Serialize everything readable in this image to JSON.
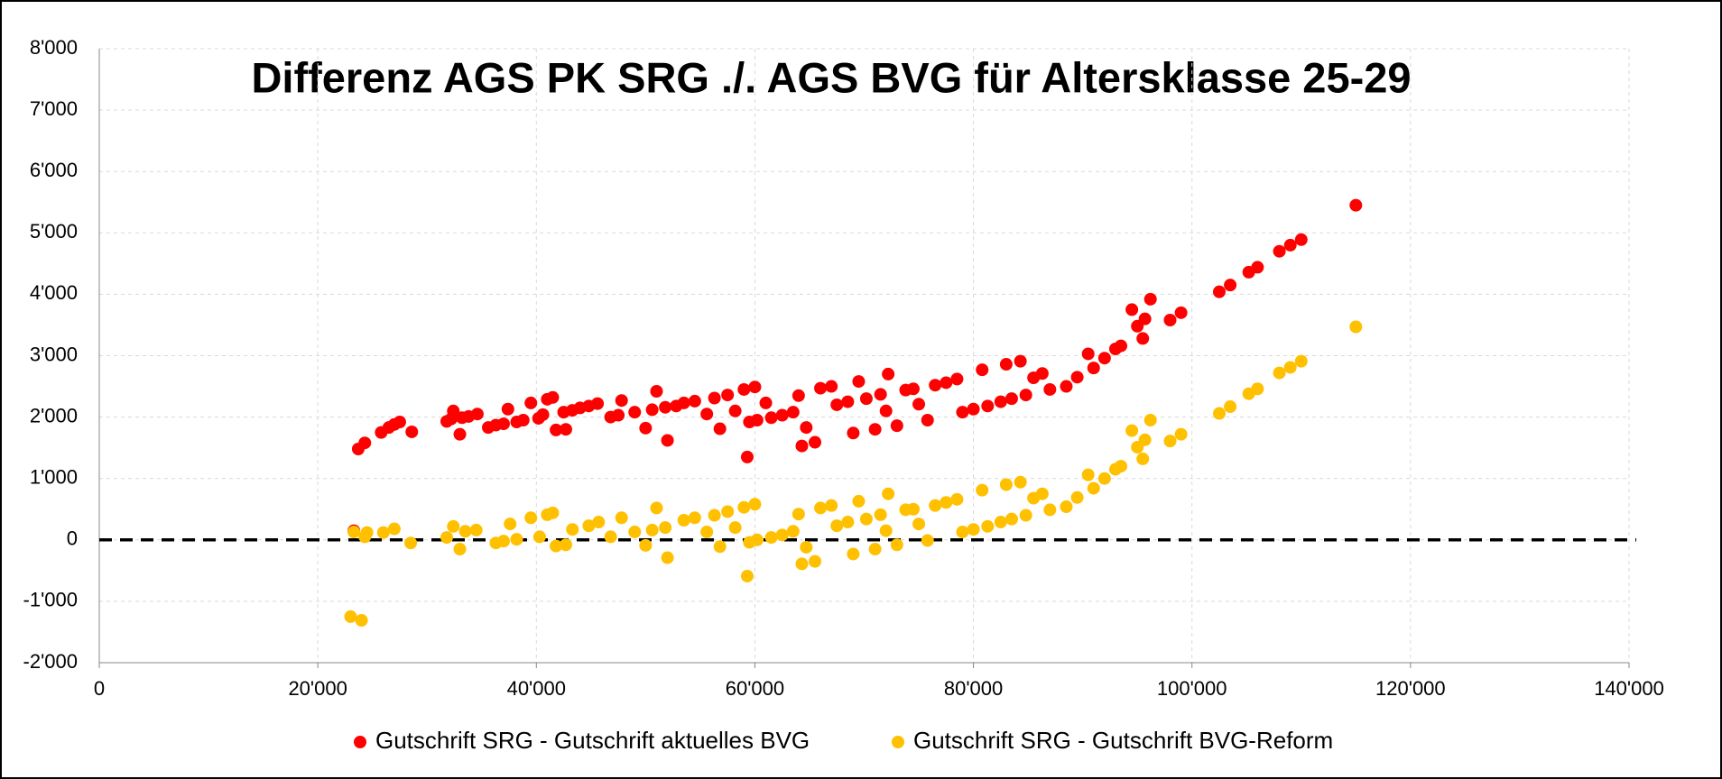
{
  "chart_data": {
    "type": "scatter",
    "title": "Differenz AGS PK SRG ./. AGS BVG für Altersklasse 25-29",
    "xlim": [
      0,
      140000
    ],
    "xticks": [
      0,
      {
        "value": 20000,
        "label": "20'000"
      },
      {
        "value": 40000,
        "label": "40'000"
      },
      {
        "value": 60000,
        "label": "60'000"
      },
      {
        "value": 80000,
        "label": "80'000"
      },
      {
        "value": 100000,
        "label": "100'000"
      },
      {
        "value": 120000,
        "label": "120'000"
      },
      {
        "value": 140000,
        "label": "140'000"
      }
    ],
    "ylim": [
      -2000,
      8000
    ],
    "yticks": [
      {
        "value": -2000,
        "label": "-2'000"
      },
      {
        "value": -1000,
        "label": "-1'000"
      },
      0,
      {
        "value": 1000,
        "label": "1'000"
      },
      {
        "value": 2000,
        "label": "2'000"
      },
      {
        "value": 3000,
        "label": "3'000"
      },
      {
        "value": 4000,
        "label": "4'000"
      },
      {
        "value": 5000,
        "label": "5'000"
      },
      {
        "value": 6000,
        "label": "6'000"
      },
      {
        "value": 7000,
        "label": "7'000"
      },
      {
        "value": 8000,
        "label": "8'000"
      }
    ],
    "grid": true,
    "legend": "bottom",
    "reference_line": {
      "y": 0,
      "style": "dashed",
      "color": "#000000"
    },
    "series": [
      {
        "name": "Gutschrift SRG - Gutschrift aktuelles BVG",
        "color": "#ff0000",
        "x": [
          23300,
          23700,
          24300,
          25800,
          26500,
          27000,
          27500,
          28600,
          31800,
          32200,
          32400,
          33000,
          33200,
          33800,
          34600,
          35600,
          36300,
          37000,
          37400,
          38200,
          38800,
          39500,
          40200,
          40600,
          41000,
          41500,
          41800,
          42500,
          42700,
          43300,
          44000,
          44800,
          45600,
          46800,
          47500,
          47800,
          49000,
          50000,
          50600,
          51000,
          51800,
          52000,
          52800,
          53500,
          54500,
          55600,
          56300,
          56800,
          57500,
          58200,
          59300,
          59000,
          59500,
          60200,
          60000,
          61000,
          61500,
          62500,
          63500,
          64000,
          64300,
          64700,
          65500,
          66000,
          67000,
          67500,
          68500,
          69000,
          69500,
          70200,
          71000,
          71500,
          72200,
          72000,
          73000,
          73800,
          74500,
          75000,
          75800,
          76500,
          77500,
          78500,
          79000,
          80000,
          80800,
          81300,
          82500,
          83000,
          83500,
          84300,
          84800,
          85500,
          86300,
          87000,
          88500,
          89500,
          90500,
          91000,
          92000,
          93000,
          93500,
          94500,
          95000,
          95500,
          95700,
          96200,
          98000,
          99000,
          102500,
          103500,
          105200,
          106000,
          108000,
          109000,
          110000,
          115000
        ],
        "values": [
          150,
          1480,
          1580,
          1750,
          1830,
          1880,
          1920,
          1760,
          1930,
          1970,
          2100,
          1720,
          1990,
          2010,
          2050,
          1830,
          1870,
          1890,
          2130,
          1920,
          1950,
          2230,
          1980,
          2040,
          2290,
          2320,
          1790,
          2080,
          1800,
          2110,
          2150,
          2180,
          2220,
          2000,
          2030,
          2270,
          2080,
          1820,
          2120,
          2420,
          2160,
          1620,
          2180,
          2230,
          2260,
          2050,
          2310,
          1810,
          2360,
          2100,
          1350,
          2450,
          1920,
          1950,
          2490,
          2230,
          1990,
          2030,
          2080,
          2350,
          1530,
          1830,
          1590,
          2470,
          2500,
          2200,
          2250,
          1740,
          2580,
          2300,
          1800,
          2370,
          2700,
          2100,
          1860,
          2440,
          2460,
          2210,
          1950,
          2520,
          2560,
          2620,
          2080,
          2130,
          2770,
          2180,
          2250,
          2860,
          2300,
          2910,
          2360,
          2640,
          2710,
          2450,
          2500,
          2650,
          3030,
          2800,
          2960,
          3110,
          3160,
          3750,
          3480,
          3280,
          3600,
          3920,
          3580,
          3700,
          4040,
          4150,
          4360,
          4440,
          4700,
          4800,
          4890,
          5450
        ]
      },
      {
        "name": "Gutschrift SRG - Gutschrift BVG-Reform",
        "color": "#ffc000",
        "x": [
          23000,
          23300,
          24000,
          24300,
          24500,
          26000,
          27000,
          28500,
          31800,
          32400,
          33000,
          33500,
          34500,
          36300,
          37000,
          37600,
          38200,
          39500,
          40300,
          41000,
          41500,
          41800,
          42700,
          43300,
          44800,
          45700,
          46800,
          47800,
          49000,
          50000,
          50600,
          51000,
          51800,
          52000,
          53500,
          54500,
          55600,
          56300,
          56800,
          57500,
          58200,
          59300,
          59000,
          59500,
          60000,
          60200,
          61500,
          62500,
          63500,
          64000,
          64300,
          64700,
          65500,
          66000,
          67000,
          67500,
          68500,
          69000,
          69500,
          70200,
          71000,
          71500,
          72200,
          72000,
          73000,
          73800,
          74500,
          75000,
          75800,
          76500,
          77500,
          78500,
          79000,
          80000,
          80800,
          81300,
          82500,
          83000,
          83500,
          84300,
          84800,
          85500,
          86300,
          87000,
          88500,
          89500,
          90500,
          91000,
          92000,
          93000,
          93500,
          94500,
          95000,
          95500,
          95700,
          96200,
          98000,
          99000,
          102500,
          103500,
          105200,
          106000,
          108000,
          109000,
          110000,
          115000
        ],
        "values": [
          -1250,
          130,
          -1310,
          50,
          120,
          120,
          180,
          -50,
          40,
          220,
          -150,
          140,
          160,
          -50,
          -20,
          260,
          10,
          360,
          50,
          410,
          440,
          -100,
          -80,
          170,
          230,
          290,
          50,
          360,
          130,
          -90,
          160,
          520,
          200,
          -290,
          320,
          360,
          130,
          400,
          -110,
          460,
          200,
          -590,
          530,
          -40,
          580,
          0,
          40,
          80,
          140,
          420,
          -390,
          -120,
          -350,
          520,
          560,
          230,
          290,
          -230,
          630,
          340,
          -150,
          410,
          750,
          150,
          -80,
          490,
          500,
          260,
          -10,
          560,
          610,
          660,
          130,
          170,
          810,
          220,
          290,
          900,
          340,
          940,
          400,
          680,
          750,
          490,
          540,
          690,
          1060,
          840,
          1000,
          1150,
          1200,
          1780,
          1510,
          1320,
          1630,
          1950,
          1610,
          1720,
          2060,
          2170,
          2380,
          2460,
          2720,
          2810,
          2910,
          3470
        ]
      }
    ]
  }
}
